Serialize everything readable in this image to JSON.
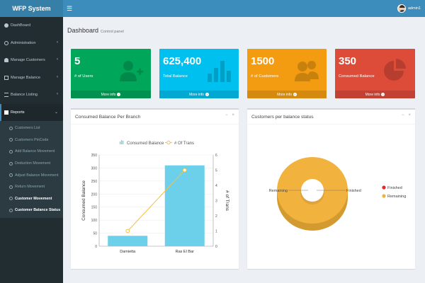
{
  "header": {
    "logo": "WFP System",
    "menu_toggle_icon": "hamburger-icon",
    "username": "admin1",
    "user_avatar_icon": "user-avatar-icon"
  },
  "sidebar": {
    "items": [
      {
        "label": "DashBoard",
        "icon": "dashboard-icon"
      },
      {
        "label": "Administration",
        "icon": "gear-icon",
        "chevron": "‹"
      },
      {
        "label": "Manage Customers",
        "icon": "users-icon",
        "chevron": "‹"
      },
      {
        "label": "Manage Balance",
        "icon": "balance-icon",
        "chevron": "‹"
      },
      {
        "label": "Balance Listing",
        "icon": "list-icon",
        "chevron": "‹"
      },
      {
        "label": "Reports",
        "icon": "reports-icon",
        "chevron": "⌄"
      }
    ],
    "reports_sub": [
      {
        "label": "Customers List"
      },
      {
        "label": "Customers PinCode"
      },
      {
        "label": "Add Balance Movement"
      },
      {
        "label": "Deduction Movement"
      },
      {
        "label": "Adjust Balance Movement"
      },
      {
        "label": "Return Movement"
      },
      {
        "label": "Customer Movement"
      },
      {
        "label": "Customer Balance Status"
      }
    ]
  },
  "page": {
    "title": "Dashboard",
    "subtitle": "Control panel"
  },
  "stats": [
    {
      "value": "5",
      "label": "# of Users",
      "footer": "More info",
      "color": "#00a65a",
      "icon": "user-add-icon"
    },
    {
      "value": "625,400",
      "label": "Total Balance",
      "footer": "More info",
      "color": "#00c0ef",
      "icon": "bar-chart-icon"
    },
    {
      "value": "1500",
      "label": "# of Customers",
      "footer": "More info",
      "color": "#f39c12",
      "icon": "customers-icon"
    },
    {
      "value": "350",
      "label": "Consumed Balance",
      "footer": "More info",
      "color": "#dd4b39",
      "icon": "pie-chart-icon"
    }
  ],
  "panels": {
    "branch_chart": {
      "title": "Consumed Balance Per Branch",
      "minimize": "−",
      "close": "×"
    },
    "status_chart": {
      "title": "Customers per balance status",
      "minimize": "−",
      "close": "×"
    }
  },
  "chart_data": [
    {
      "type": "bar",
      "title": "Consumed Balance Per Branch",
      "categories": [
        "Damietta",
        "Ras El Bar"
      ],
      "series": [
        {
          "name": "Consumed Balance",
          "type": "bar",
          "values": [
            40,
            310
          ],
          "color": "#6dd0ea"
        },
        {
          "name": "# Of Trans",
          "type": "line",
          "values": [
            1,
            5
          ],
          "color": "#f7bf3d"
        }
      ],
      "ylabel": "Consumed Balance",
      "y2label": "# of Trans",
      "ylim": [
        0,
        350
      ],
      "y_ticks": [
        0,
        50,
        100,
        150,
        200,
        250,
        300,
        350
      ],
      "y2lim": [
        0,
        6
      ],
      "y2_ticks": [
        0,
        1,
        2,
        3,
        4,
        5,
        6
      ],
      "legend": "top"
    },
    {
      "type": "pie",
      "title": "Customers per balance status",
      "categories": [
        "Finished",
        "Remaining"
      ],
      "values": [
        0,
        100
      ],
      "colors": [
        "#e7282b",
        "#f2b33e"
      ],
      "legend": "right"
    }
  ]
}
